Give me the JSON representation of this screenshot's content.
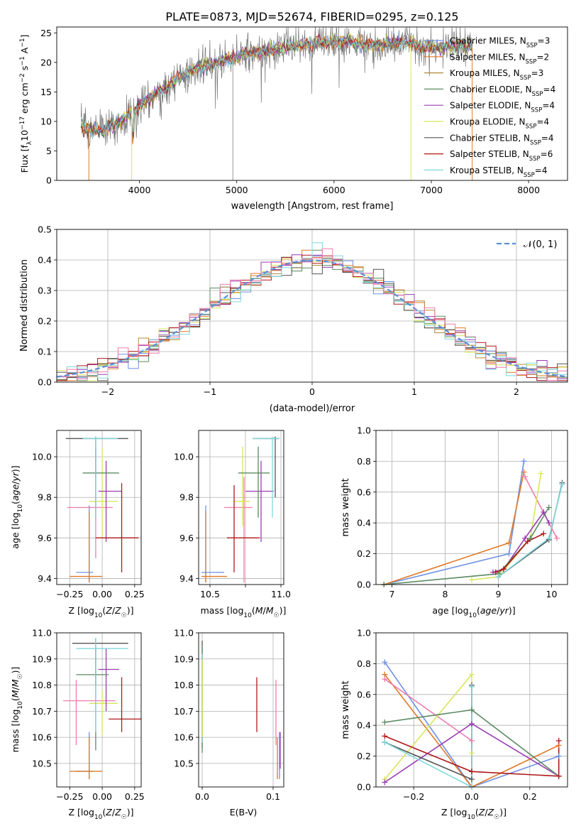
{
  "figure_title": "PLATE=0873, MJD=52674, FIBERID=0295, z=0.125",
  "models": [
    {
      "name": "Chabrier MILES",
      "nssp": "3",
      "color": "#6d8fe3"
    },
    {
      "name": "Salpeter MILES",
      "nssp": "2",
      "color": "#e07a28"
    },
    {
      "name": "Kroupa MILES",
      "nssp": "3",
      "color": "#b08a3a"
    },
    {
      "name": "Chabrier ELODIE",
      "nssp": "4",
      "color": "#5b8a62"
    },
    {
      "name": "Salpeter ELODIE",
      "nssp": "4",
      "color": "#9a3db2"
    },
    {
      "name": "Kroupa ELODIE",
      "nssp": "4",
      "color": "#d8e65a"
    },
    {
      "name": "Chabrier STELIB",
      "nssp": "4",
      "color": "#555555"
    },
    {
      "name": "Salpeter STELIB",
      "nssp": "6",
      "color": "#b01818"
    },
    {
      "name": "Kroupa STELIB",
      "nssp": "4",
      "color": "#7fd8dc"
    }
  ],
  "extra_colors": {
    "pink": "#f07cab",
    "cyan": "#7fd8dc"
  },
  "chart_data": [
    {
      "id": "spectrum",
      "type": "line",
      "xlabel": "wavelength [Angstrom, rest frame]",
      "ylabel": "Flux [f_λ 10^-17 erg cm^-2 s^-1 A^-1]",
      "xlim": [
        3150,
        8400
      ],
      "ylim": [
        0,
        26
      ],
      "xticks": [
        4000,
        5000,
        6000,
        7000,
        8000
      ],
      "yticks": [
        0,
        5,
        10,
        15,
        20,
        25
      ],
      "grid": false,
      "legend": "top-right",
      "continuum": {
        "x": [
          3400,
          3600,
          3800,
          3950,
          4100,
          4300,
          4500,
          4700,
          4900,
          5100,
          5300,
          5500,
          5700,
          5900,
          6100,
          6300,
          6500,
          6700,
          6900,
          7100,
          7300,
          7420
        ],
        "y": [
          9,
          8.5,
          10,
          12,
          14,
          16,
          18.5,
          19.5,
          20.5,
          21.5,
          22,
          22.5,
          23,
          23.5,
          23.5,
          23,
          23,
          23.5,
          22.8,
          22.5,
          23,
          22.5
        ]
      }
    },
    {
      "id": "residual-histogram",
      "type": "line",
      "xlabel": "(data-model)/error",
      "ylabel": "Normed distribution",
      "xlim": [
        -2.5,
        2.5
      ],
      "ylim": [
        0,
        0.5
      ],
      "xticks": [
        -2,
        -1,
        0,
        1,
        2
      ],
      "yticks": [
        0.0,
        0.1,
        0.2,
        0.3,
        0.4,
        0.5
      ],
      "grid": true,
      "legend": "top-right",
      "legend_label": "𝒩(0, 1)",
      "bin_width": 0.1
    },
    {
      "id": "age-vs-metallicity",
      "type": "scatter",
      "xlabel": "Z [log10(Z/Z☉)]",
      "ylabel": "age [log10(age/yr)]",
      "xlim": [
        -0.35,
        0.3
      ],
      "ylim": [
        9.37,
        10.13
      ],
      "xticks": [
        -0.25,
        0.0,
        0.25
      ],
      "yticks": [
        9.4,
        9.6,
        9.8,
        10.0
      ],
      "grid": true,
      "points": [
        {
          "c": "#6d8fe3",
          "x": -0.1,
          "xe": [
            -0.2,
            -0.07
          ],
          "y": 9.43,
          "ye": [
            9.38,
            9.76
          ]
        },
        {
          "c": "#e07a28",
          "x": -0.1,
          "xe": [
            -0.25,
            0.0
          ],
          "y": 9.41,
          "ye": [
            9.38,
            9.73
          ]
        },
        {
          "c": "#f07cab",
          "x": -0.05,
          "xe": [
            -0.27,
            0.08
          ],
          "y": 9.75,
          "ye": [
            9.5,
            9.9
          ]
        },
        {
          "c": "#d8e65a",
          "x": 0.0,
          "xe": [
            -0.1,
            0.12
          ],
          "y": 9.78,
          "ye": [
            9.6,
            10.04
          ]
        },
        {
          "c": "#9a3db2",
          "x": 0.03,
          "xe": [
            -0.03,
            0.15
          ],
          "y": 9.83,
          "ye": [
            9.58,
            9.98
          ]
        },
        {
          "c": "#5b8a62",
          "x": -0.05,
          "xe": [
            -0.15,
            0.13
          ],
          "y": 9.92,
          "ye": [
            9.7,
            10.05
          ]
        },
        {
          "c": "#555555",
          "x": -0.05,
          "xe": [
            -0.28,
            0.2
          ],
          "y": 10.09,
          "ye": [
            9.9,
            10.1
          ]
        },
        {
          "c": "#7fd8dc",
          "x": -0.05,
          "xe": [
            -0.15,
            0.12
          ],
          "y": 10.09,
          "ye": [
            9.7,
            10.1
          ]
        },
        {
          "c": "#b01818",
          "x": 0.15,
          "xe": [
            -0.05,
            0.28
          ],
          "y": 9.6,
          "ye": [
            9.43,
            9.87
          ]
        }
      ]
    },
    {
      "id": "age-vs-mass",
      "type": "scatter",
      "xlabel": "mass [log10(M/M☉)]",
      "ylabel": "",
      "xlim": [
        10.42,
        11.02
      ],
      "ylim": [
        9.37,
        10.13
      ],
      "xticks": [
        10.5,
        10.75,
        11.0
      ],
      "tick_labels_x": [
        "10.5",
        "",
        "11.0"
      ],
      "yticks": [
        9.4,
        9.6,
        9.8,
        10.0
      ],
      "grid": true,
      "points": [
        {
          "c": "#6d8fe3",
          "x": 10.47,
          "xe": [
            10.44,
            10.6
          ],
          "y": 9.43,
          "ye": [
            9.38,
            9.76
          ]
        },
        {
          "c": "#e07a28",
          "x": 10.47,
          "xe": [
            10.44,
            10.62
          ],
          "y": 9.41,
          "ye": [
            9.38,
            9.73
          ]
        },
        {
          "c": "#f07cab",
          "x": 10.74,
          "xe": [
            10.6,
            10.8
          ],
          "y": 9.75,
          "ye": [
            9.38,
            9.9
          ]
        },
        {
          "c": "#d8e65a",
          "x": 10.73,
          "xe": [
            10.67,
            10.78
          ],
          "y": 9.78,
          "ye": [
            9.66,
            10.05
          ]
        },
        {
          "c": "#9a3db2",
          "x": 10.86,
          "xe": [
            10.75,
            10.95
          ],
          "y": 9.83,
          "ye": [
            9.58,
            9.98
          ]
        },
        {
          "c": "#5b8a62",
          "x": 10.84,
          "xe": [
            10.7,
            10.92
          ],
          "y": 9.92,
          "ye": [
            9.7,
            10.05
          ]
        },
        {
          "c": "#555555",
          "x": 10.96,
          "xe": [
            10.8,
            10.99
          ],
          "y": 10.09,
          "ye": [
            9.8,
            10.1
          ]
        },
        {
          "c": "#7fd8dc",
          "x": 10.94,
          "xe": [
            10.8,
            10.99
          ],
          "y": 10.09,
          "ye": [
            9.7,
            10.1
          ]
        },
        {
          "c": "#b01818",
          "x": 10.67,
          "xe": [
            10.62,
            10.85
          ],
          "y": 9.6,
          "ye": [
            9.43,
            9.86
          ]
        }
      ]
    },
    {
      "id": "mass-weight-vs-age",
      "type": "line",
      "xlabel": "age [log10(age/yr)]",
      "ylabel": "mass weight",
      "xlim": [
        6.7,
        10.3
      ],
      "ylim": [
        0,
        1.0
      ],
      "xticks": [
        7,
        8,
        9,
        10
      ],
      "yticks": [
        0.0,
        0.2,
        0.4,
        0.6,
        0.8,
        1.0
      ],
      "grid": true,
      "series": [
        {
          "c": "#6d8fe3",
          "x": [
            6.85,
            9.2,
            9.48
          ],
          "y": [
            0.0,
            0.2,
            0.8
          ]
        },
        {
          "c": "#e07a28",
          "x": [
            6.85,
            9.2,
            9.48
          ],
          "y": [
            0.0,
            0.27,
            0.73
          ]
        },
        {
          "c": "#f07cab",
          "x": [
            9.5,
            10.1
          ],
          "y": [
            0.7,
            0.3
          ]
        },
        {
          "c": "#d8e65a",
          "x": [
            8.5,
            9.0,
            9.6,
            9.8
          ],
          "y": [
            0.03,
            0.05,
            0.3,
            0.72
          ]
        },
        {
          "c": "#9a3db2",
          "x": [
            8.9,
            9.1,
            9.5,
            9.85,
            9.95
          ],
          "y": [
            0.08,
            0.1,
            0.3,
            0.47,
            0.4
          ]
        },
        {
          "c": "#5b8a62",
          "x": [
            6.85,
            9.0,
            9.6,
            9.95
          ],
          "y": [
            0.0,
            0.07,
            0.3,
            0.5
          ]
        },
        {
          "c": "#555555",
          "x": [
            9.0,
            9.95,
            10.2
          ],
          "y": [
            0.05,
            0.29,
            0.66
          ]
        },
        {
          "c": "#7fd8dc",
          "x": [
            9.0,
            9.95,
            10.2
          ],
          "y": [
            0.05,
            0.3,
            0.65
          ]
        },
        {
          "c": "#b01818",
          "x": [
            8.95,
            9.1,
            9.55,
            9.85
          ],
          "y": [
            0.08,
            0.1,
            0.28,
            0.33
          ]
        }
      ]
    },
    {
      "id": "mass-vs-metallicity",
      "type": "scatter",
      "xlabel": "Z [log10(Z/Z☉)]",
      "ylabel": "mass [log10(M/M☉)]",
      "xlim": [
        -0.35,
        0.3
      ],
      "ylim": [
        10.41,
        11.0
      ],
      "xticks": [
        -0.25,
        0.0,
        0.25
      ],
      "yticks": [
        10.5,
        10.6,
        10.7,
        10.8,
        10.9,
        11.0
      ],
      "grid": true,
      "points": [
        {
          "c": "#6d8fe3",
          "x": -0.1,
          "xe": [
            -0.2,
            -0.07
          ],
          "y": 10.47,
          "ye": [
            10.44,
            10.62
          ]
        },
        {
          "c": "#e07a28",
          "x": -0.1,
          "xe": [
            -0.25,
            0.0
          ],
          "y": 10.47,
          "ye": [
            10.44,
            10.6
          ]
        },
        {
          "c": "#f07cab",
          "x": -0.2,
          "xe": [
            -0.3,
            0.1
          ],
          "y": 10.74,
          "ye": [
            10.57,
            10.82
          ]
        },
        {
          "c": "#d8e65a",
          "x": 0.0,
          "xe": [
            -0.1,
            0.12
          ],
          "y": 10.73,
          "ye": [
            10.61,
            10.78
          ]
        },
        {
          "c": "#9a3db2",
          "x": 0.03,
          "xe": [
            -0.03,
            0.13
          ],
          "y": 10.86,
          "ye": [
            10.7,
            10.94
          ]
        },
        {
          "c": "#5b8a62",
          "x": -0.05,
          "xe": [
            -0.2,
            0.05
          ],
          "y": 10.84,
          "ye": [
            10.55,
            10.94
          ]
        },
        {
          "c": "#555555",
          "x": -0.05,
          "xe": [
            -0.23,
            0.2
          ],
          "y": 10.96,
          "ye": [
            10.8,
            10.98
          ]
        },
        {
          "c": "#7fd8dc",
          "x": -0.05,
          "xe": [
            -0.2,
            0.2
          ],
          "y": 10.94,
          "ye": [
            10.62,
            10.98
          ]
        },
        {
          "c": "#b01818",
          "x": 0.15,
          "xe": [
            0.05,
            0.3
          ],
          "y": 10.67,
          "ye": [
            10.62,
            10.83
          ]
        }
      ]
    },
    {
      "id": "mass-vs-ebv",
      "type": "scatter",
      "xlabel": "E(B-V)",
      "ylabel": "",
      "xlim": [
        -0.005,
        0.115
      ],
      "ylim": [
        10.41,
        11.0
      ],
      "xticks": [
        0.0,
        0.1
      ],
      "yticks": [
        10.5,
        10.6,
        10.7,
        10.8,
        10.9,
        11.0
      ],
      "grid": true,
      "vlines": [
        {
          "c": "#555555",
          "x": 0.0,
          "y": [
            10.56,
            10.97
          ]
        },
        {
          "c": "#5b8a62",
          "x": 0.0,
          "y": [
            10.54,
            10.95
          ]
        },
        {
          "c": "#7fd8dc",
          "x": 0.0,
          "y": [
            10.58,
            10.92
          ]
        },
        {
          "c": "#d8e65a",
          "x": 0.0,
          "y": [
            10.6,
            10.9
          ]
        },
        {
          "c": "#b01818",
          "x": 0.077,
          "y": [
            10.62,
            10.83
          ]
        },
        {
          "c": "#f07cab",
          "x": 0.104,
          "y": [
            10.57,
            10.82
          ]
        },
        {
          "c": "#e07a28",
          "x": 0.106,
          "y": [
            10.44,
            10.6
          ]
        },
        {
          "c": "#6d8fe3",
          "x": 0.109,
          "y": [
            10.44,
            10.62
          ]
        },
        {
          "c": "#9a3db2",
          "x": 0.11,
          "y": [
            10.48,
            10.62
          ]
        }
      ]
    },
    {
      "id": "mass-weight-vs-metallicity",
      "type": "line",
      "xlabel": "Z [log10(Z/Z☉)]",
      "ylabel": "mass weight",
      "xlim": [
        -0.33,
        0.33
      ],
      "ylim": [
        0,
        1.0
      ],
      "xticks": [
        -0.2,
        0.0,
        0.2
      ],
      "yticks": [
        0.0,
        0.2,
        0.4,
        0.6,
        0.8,
        1.0
      ],
      "grid": true,
      "series": [
        {
          "c": "#6d8fe3",
          "x": [
            -0.3,
            0.0,
            0.3
          ],
          "y": [
            0.81,
            0.0,
            0.2
          ]
        },
        {
          "c": "#e07a28",
          "x": [
            -0.3,
            0.0,
            0.3
          ],
          "y": [
            0.73,
            0.0,
            0.27
          ]
        },
        {
          "c": "#f07cab",
          "x": [
            -0.3,
            0.0
          ],
          "y": [
            0.7,
            0.3
          ]
        },
        {
          "c": "#d8e65a",
          "x": [
            -0.3,
            0.0,
            0.0
          ],
          "y": [
            0.05,
            0.73,
            0.22
          ]
        },
        {
          "c": "#9a3db2",
          "x": [
            -0.3,
            0.0,
            0.3
          ],
          "y": [
            0.03,
            0.41,
            0.07
          ]
        },
        {
          "c": "#5b8a62",
          "x": [
            -0.3,
            0.0,
            0.3
          ],
          "y": [
            0.42,
            0.5,
            0.07
          ]
        },
        {
          "c": "#555555",
          "x": [
            -0.3,
            0.0,
            0.0
          ],
          "y": [
            0.29,
            0.05,
            0.66
          ]
        },
        {
          "c": "#7fd8dc",
          "x": [
            -0.3,
            0.0,
            0.0
          ],
          "y": [
            0.29,
            0.0,
            0.65
          ]
        },
        {
          "c": "#b01818",
          "x": [
            -0.3,
            0.0,
            0.3,
            0.3
          ],
          "y": [
            0.33,
            0.1,
            0.07,
            0.3
          ]
        }
      ]
    }
  ]
}
